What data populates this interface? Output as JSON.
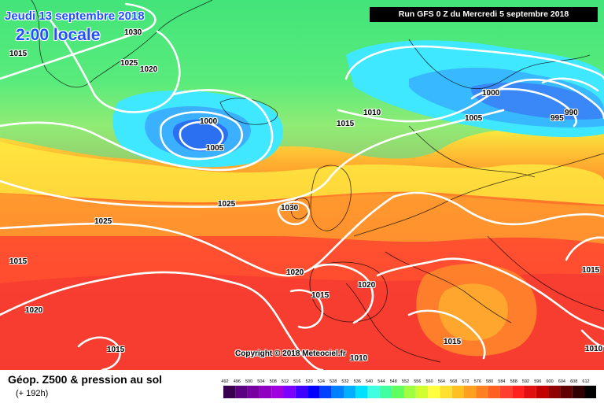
{
  "header": {
    "date": "Jeudi 13 septembre 2018",
    "time": "2:00 locale",
    "run": "Run GFS 0 Z du Mercredi 5 septembre 2018"
  },
  "map": {
    "field": "Géop. Z500 & pression au sol",
    "lead": "(+ 192h)",
    "copyright": "Copyright © 2018 Meteociel.fr",
    "isobar_labels": [
      "1030",
      "1015",
      "1025",
      "1020",
      "1000",
      "1005",
      "1015",
      "1010",
      "1000",
      "1005",
      "995",
      "990",
      "1025",
      "1030",
      "1025",
      "1015",
      "1020",
      "1020",
      "1015",
      "1020",
      "1015",
      "1015",
      "1015",
      "1010",
      "1010"
    ]
  },
  "legend": {
    "scale": [
      "492",
      "496",
      "500",
      "504",
      "508",
      "512",
      "516",
      "520",
      "524",
      "528",
      "532",
      "536",
      "540",
      "544",
      "548",
      "552",
      "556",
      "560",
      "564",
      "568",
      "572",
      "576",
      "580",
      "584",
      "588",
      "592",
      "596",
      "600",
      "604",
      "608",
      "612"
    ],
    "colors": [
      "#3a0050",
      "#5a0080",
      "#7800a0",
      "#9000c0",
      "#a000e0",
      "#7a00ff",
      "#4000ff",
      "#0000ff",
      "#0040ff",
      "#0080ff",
      "#00b0ff",
      "#00e0ff",
      "#40ffe0",
      "#40ffa0",
      "#60ff60",
      "#a0ff40",
      "#d0ff30",
      "#ffff40",
      "#ffe030",
      "#ffc020",
      "#ffa020",
      "#ff8020",
      "#ff6020",
      "#ff4030",
      "#ff2020",
      "#e01010",
      "#c00000",
      "#900000",
      "#600000",
      "#300000",
      "#000000"
    ]
  }
}
